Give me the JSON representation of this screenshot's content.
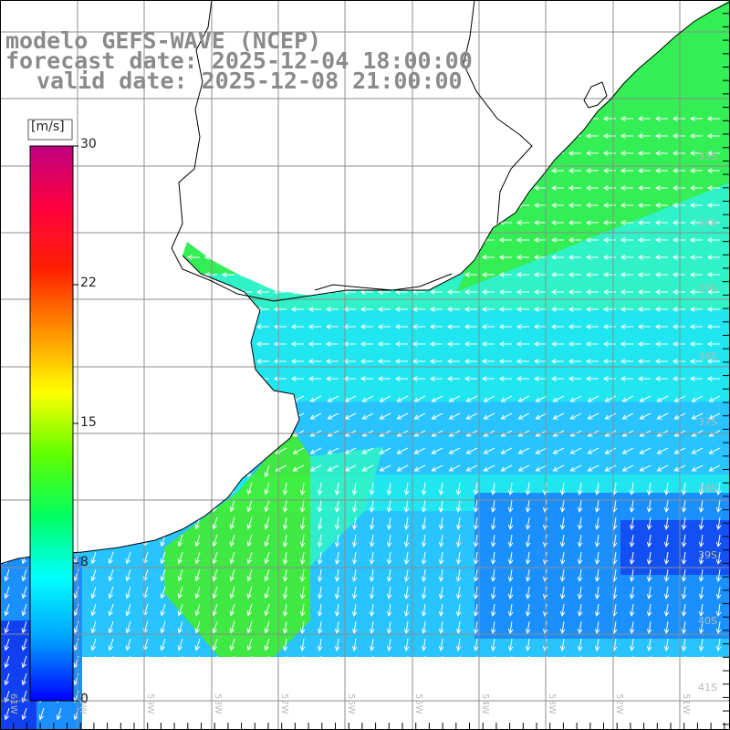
{
  "title": {
    "model": "modelo GEFS-WAVE (NCEP)",
    "forecast": "forecast date: 2025-12-04 18:00:00",
    "valid": "valid date: 2025-12-08 21:00:00"
  },
  "colorbar": {
    "unit": "[m/s]",
    "ticks": [
      "30",
      "22",
      "15",
      "8",
      "0"
    ],
    "min": 0,
    "max": 30,
    "colors": [
      "#0000ff",
      "#00a0ff",
      "#00ffff",
      "#00ff60",
      "#60ff00",
      "#ffff00",
      "#ff9000",
      "#ff2000",
      "#ff0040",
      "#c00080"
    ]
  },
  "lat_labels": [
    "33S",
    "34S",
    "35S",
    "36S",
    "37S",
    "38S",
    "39S",
    "40S",
    "41S"
  ],
  "lon_labels": [
    "61W",
    "60W",
    "59W",
    "58W",
    "57W",
    "56W",
    "55W",
    "54W",
    "53W",
    "52W",
    "51W"
  ],
  "wind_field": {
    "palette": {
      "dark_blue": "#1040f0",
      "blue": "#1a90ff",
      "light_blue": "#27c4ff",
      "cyan": "#20e6f0",
      "aqua": "#30f2c8",
      "green": "#33ee55",
      "bright_green": "#44ee22"
    },
    "arrow_color": "#ffffff",
    "land_color": "#ffffff",
    "coast_color": "#000000",
    "grid_color": "#8c8c8c"
  }
}
